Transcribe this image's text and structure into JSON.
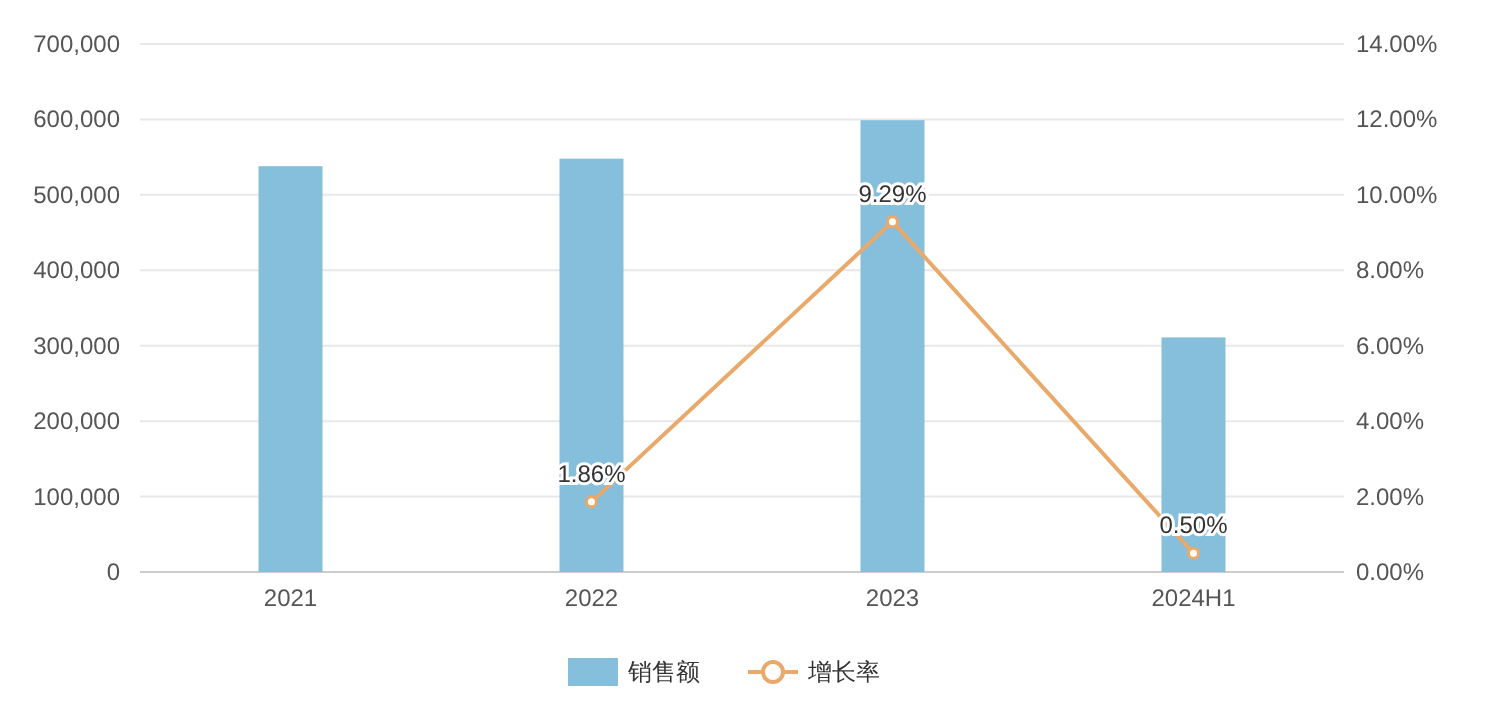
{
  "chart_data": {
    "type": "bar",
    "categories": [
      "2021",
      "2022",
      "2023",
      "2024H1"
    ],
    "series": [
      {
        "name": "销售额",
        "color": "#86bfdc",
        "values": [
          538000,
          548000,
          599000,
          311000
        ]
      },
      {
        "name": "增长率",
        "type": "line",
        "axis": "y2",
        "color": "#e8a96b",
        "marker": "circle",
        "values": [
          null,
          1.86,
          9.29,
          0.5
        ],
        "value_labels": [
          null,
          "1.86%",
          "9.29%",
          "0.50%"
        ]
      }
    ],
    "ylim": [
      0,
      700000
    ],
    "yticks": [
      {
        "value": 0,
        "label": "0"
      },
      {
        "value": 100000,
        "label": "100,000"
      },
      {
        "value": 200000,
        "label": "200,000"
      },
      {
        "value": 300000,
        "label": "300,000"
      },
      {
        "value": 400000,
        "label": "400,000"
      },
      {
        "value": 500000,
        "label": "500,000"
      },
      {
        "value": 600000,
        "label": "600,000"
      },
      {
        "value": 700000,
        "label": "700,000"
      }
    ],
    "y2lim": [
      0,
      14
    ],
    "y2ticks": [
      {
        "value": 0,
        "label": "0.00%"
      },
      {
        "value": 2,
        "label": "2.00%"
      },
      {
        "value": 4,
        "label": "4.00%"
      },
      {
        "value": 6,
        "label": "6.00%"
      },
      {
        "value": 8,
        "label": "8.00%"
      },
      {
        "value": 10,
        "label": "10.00%"
      },
      {
        "value": 12,
        "label": "12.00%"
      },
      {
        "value": 14,
        "label": "14.00%"
      }
    ],
    "grid": "y",
    "legend": "bottom"
  }
}
